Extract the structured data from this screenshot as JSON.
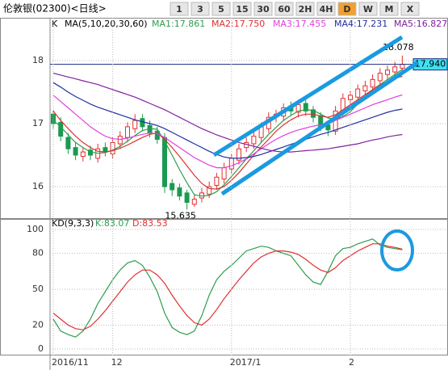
{
  "toolbar": {
    "title": "伦敦银(02300)<日线>",
    "buttons": [
      "1",
      "3",
      "5",
      "15",
      "30",
      "60",
      "2H",
      "4H",
      "D",
      "W",
      "M",
      "X"
    ],
    "active_index": 8
  },
  "chart_data": [
    {
      "type": "candlestick",
      "panel_label": "K",
      "legend_title": "MA(5,10,20,30,60)",
      "ylim": [
        15.5,
        18.5
      ],
      "yticks": [
        16,
        17,
        18
      ],
      "grid": true,
      "up_color": "#e03030",
      "down_color": "#1a9a50",
      "open": [
        17.15,
        17.02,
        16.78,
        16.62,
        16.48,
        16.58,
        16.45,
        16.62,
        16.52,
        16.68,
        16.78,
        16.92,
        17.08,
        16.97,
        16.88,
        16.78,
        16.05,
        15.98,
        15.9,
        15.72,
        15.82,
        15.88,
        16.02,
        16.12,
        16.28,
        16.42,
        16.62,
        16.68,
        16.78,
        16.92,
        17.12,
        17.12,
        17.28,
        17.18,
        17.32,
        17.22,
        17.12,
        16.98,
        16.88,
        17.18,
        17.38,
        17.42,
        17.52,
        17.58,
        17.68,
        17.78,
        17.82,
        17.88
      ],
      "high": [
        17.22,
        17.1,
        16.85,
        16.7,
        16.62,
        16.65,
        16.68,
        16.7,
        16.78,
        16.88,
        17.02,
        17.15,
        17.15,
        17.05,
        16.95,
        16.85,
        16.12,
        16.05,
        15.95,
        15.88,
        15.98,
        16.08,
        16.22,
        16.38,
        16.52,
        16.68,
        16.78,
        16.88,
        17.02,
        17.18,
        17.22,
        17.32,
        17.35,
        17.38,
        17.38,
        17.28,
        17.18,
        17.05,
        17.28,
        17.48,
        17.52,
        17.62,
        17.68,
        17.78,
        17.88,
        17.92,
        17.98,
        18.078
      ],
      "low": [
        16.92,
        16.72,
        16.52,
        16.42,
        16.4,
        16.42,
        16.38,
        16.48,
        16.45,
        16.6,
        16.7,
        16.85,
        16.88,
        16.78,
        16.68,
        15.9,
        15.85,
        15.78,
        15.635,
        15.68,
        15.75,
        15.82,
        15.95,
        16.05,
        16.2,
        16.35,
        16.55,
        16.6,
        16.7,
        16.85,
        17.02,
        17.05,
        17.12,
        17.1,
        17.12,
        17.02,
        16.88,
        16.8,
        16.82,
        17.1,
        17.3,
        17.35,
        17.45,
        17.52,
        17.6,
        17.7,
        17.75,
        17.8
      ],
      "close": [
        17.0,
        16.8,
        16.6,
        16.5,
        16.55,
        16.5,
        16.6,
        16.55,
        16.7,
        16.8,
        16.95,
        17.05,
        16.95,
        16.85,
        16.75,
        16.0,
        15.95,
        15.85,
        15.75,
        15.8,
        15.9,
        16.0,
        16.15,
        16.3,
        16.45,
        16.6,
        16.7,
        16.8,
        16.95,
        17.1,
        17.15,
        17.25,
        17.2,
        17.3,
        17.2,
        17.1,
        16.95,
        16.9,
        17.2,
        17.4,
        17.45,
        17.55,
        17.6,
        17.7,
        17.8,
        17.85,
        17.9,
        17.94
      ],
      "price_tag": {
        "value": 17.94,
        "label": "17.940"
      },
      "series": [
        {
          "name": "MA1",
          "legend": "MA1:17.861",
          "color": "#2e9e4e",
          "values": [
            17.05,
            16.95,
            16.82,
            16.7,
            16.62,
            16.55,
            16.53,
            16.54,
            16.58,
            16.64,
            16.72,
            16.81,
            16.89,
            16.92,
            16.91,
            16.72,
            16.5,
            16.27,
            16.06,
            15.87,
            15.85,
            15.86,
            15.92,
            16.03,
            16.16,
            16.3,
            16.44,
            16.57,
            16.7,
            16.83,
            16.94,
            17.05,
            17.13,
            17.2,
            17.22,
            17.21,
            17.15,
            17.09,
            17.07,
            17.11,
            17.19,
            17.31,
            17.44,
            17.54,
            17.62,
            17.7,
            17.78,
            17.861
          ]
        },
        {
          "name": "MA2",
          "legend": "MA2:17.750",
          "color": "#e03030",
          "values": [
            17.2,
            17.05,
            16.92,
            16.8,
            16.7,
            16.62,
            16.56,
            16.55,
            16.57,
            16.61,
            16.66,
            16.72,
            16.78,
            16.83,
            16.85,
            16.75,
            16.62,
            16.48,
            16.33,
            16.18,
            16.05,
            15.97,
            15.96,
            16.0,
            16.1,
            16.22,
            16.36,
            16.5,
            16.63,
            16.75,
            16.88,
            16.98,
            17.06,
            17.12,
            17.15,
            17.15,
            17.12,
            17.1,
            17.14,
            17.22,
            17.3,
            17.38,
            17.46,
            17.54,
            17.61,
            17.67,
            17.72,
            17.75
          ]
        },
        {
          "name": "MA3",
          "legend": "MA3:17.455",
          "color": "#e040e0",
          "values": [
            17.45,
            17.35,
            17.25,
            17.15,
            17.05,
            16.95,
            16.87,
            16.8,
            16.76,
            16.75,
            16.77,
            16.8,
            16.83,
            16.85,
            16.84,
            16.78,
            16.7,
            16.62,
            16.54,
            16.46,
            16.4,
            16.34,
            16.3,
            16.3,
            16.33,
            16.38,
            16.44,
            16.52,
            16.6,
            16.68,
            16.75,
            16.81,
            16.86,
            16.9,
            16.93,
            16.96,
            16.98,
            17.0,
            17.05,
            17.1,
            17.15,
            17.2,
            17.25,
            17.3,
            17.34,
            17.38,
            17.42,
            17.455
          ]
        },
        {
          "name": "MA4",
          "legend": "MA4:17.231",
          "color": "#2030a0",
          "values": [
            17.65,
            17.58,
            17.5,
            17.43,
            17.37,
            17.31,
            17.26,
            17.22,
            17.18,
            17.14,
            17.1,
            17.06,
            17.03,
            17.0,
            16.97,
            16.92,
            16.86,
            16.8,
            16.74,
            16.68,
            16.62,
            16.56,
            16.51,
            16.47,
            16.45,
            16.45,
            16.46,
            16.48,
            16.51,
            16.55,
            16.59,
            16.63,
            16.67,
            16.71,
            16.75,
            16.79,
            16.83,
            16.86,
            16.9,
            16.94,
            16.98,
            17.02,
            17.06,
            17.1,
            17.14,
            17.18,
            17.21,
            17.231
          ]
        },
        {
          "name": "MA5",
          "legend": "MA5:16.827",
          "color": "#8020a0",
          "values": [
            17.8,
            17.77,
            17.74,
            17.71,
            17.68,
            17.65,
            17.62,
            17.58,
            17.54,
            17.5,
            17.46,
            17.42,
            17.37,
            17.32,
            17.27,
            17.22,
            17.16,
            17.1,
            17.04,
            16.98,
            16.92,
            16.87,
            16.82,
            16.78,
            16.74,
            16.7,
            16.67,
            16.64,
            16.61,
            16.58,
            16.56,
            16.55,
            16.55,
            16.56,
            16.57,
            16.58,
            16.59,
            16.6,
            16.62,
            16.64,
            16.66,
            16.68,
            16.71,
            16.74,
            16.76,
            16.79,
            16.81,
            16.827
          ]
        }
      ]
    },
    {
      "type": "line",
      "panel_label": "KD(9,3,3)",
      "categories": [
        "2016/11",
        null,
        null,
        null,
        null,
        null,
        null,
        null,
        "12",
        null,
        null,
        null,
        null,
        null,
        null,
        null,
        null,
        null,
        null,
        null,
        null,
        null,
        null,
        null,
        "2017/1",
        null,
        null,
        null,
        null,
        null,
        null,
        null,
        null,
        null,
        null,
        null,
        null,
        null,
        null,
        null,
        "2",
        null,
        null,
        null,
        null,
        null,
        null,
        null
      ],
      "ylim": [
        0,
        100
      ],
      "yticks": [
        0,
        20,
        50,
        80,
        100
      ],
      "grid": true,
      "series": [
        {
          "name": "K",
          "legend": "K:83.07",
          "color": "#2e9e4e",
          "values": [
            25,
            15,
            12,
            10,
            15,
            25,
            38,
            48,
            58,
            66,
            72,
            74,
            70,
            60,
            48,
            30,
            18,
            14,
            12,
            15,
            28,
            45,
            58,
            65,
            70,
            76,
            82,
            84,
            86,
            85,
            82,
            80,
            78,
            70,
            62,
            56,
            54,
            65,
            78,
            84,
            85,
            88,
            90,
            92,
            87,
            85,
            84,
            83.07
          ]
        },
        {
          "name": "D",
          "legend": "D:83.53",
          "color": "#e03030",
          "values": [
            30,
            25,
            20,
            17,
            16,
            19,
            25,
            32,
            40,
            48,
            56,
            62,
            66,
            66,
            62,
            55,
            45,
            36,
            28,
            22,
            20,
            25,
            33,
            42,
            50,
            58,
            65,
            72,
            77,
            80,
            82,
            82,
            81,
            79,
            75,
            70,
            66,
            64,
            68,
            74,
            78,
            82,
            85,
            88,
            88,
            86,
            85,
            83.53
          ]
        }
      ]
    }
  ]
}
